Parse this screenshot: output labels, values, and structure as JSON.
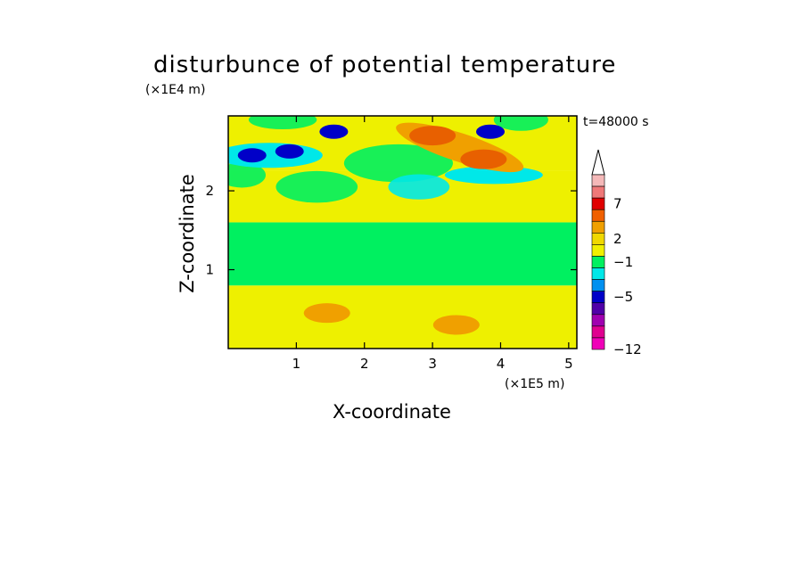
{
  "chart_data": {
    "type": "heatmap",
    "title": "disturbunce of potential temperature",
    "xlabel": "X-coordinate",
    "ylabel": "Z-coordinate",
    "x_unit": "(×1E5 m)",
    "y_unit": "(×1E4 m)",
    "time_label": "t=48000 s",
    "xlim": [
      0,
      5.12
    ],
    "ylim": [
      0,
      2.95
    ],
    "x_ticks": [
      1,
      2,
      3,
      4,
      5
    ],
    "x_tick_labels": [
      "1",
      "2",
      "3",
      "4",
      "5"
    ],
    "y_ticks": [
      1,
      2
    ],
    "y_tick_labels": [
      "1",
      "2"
    ],
    "colorbar": {
      "label_values": [
        7,
        2,
        -1,
        -5,
        -12
      ],
      "labels": [
        "7",
        "2",
        "−1",
        "−5",
        "−12"
      ],
      "colors_top_to_bottom": [
        "#f4b8b8",
        "#ef7878",
        "#e00000",
        "#f06000",
        "#f0a000",
        "#f0d800",
        "#f0f000",
        "#00f060",
        "#00e8e8",
        "#0090f0",
        "#0000c8",
        "#5000a8",
        "#a000b0",
        "#e00090",
        "#f000b8"
      ]
    },
    "field_bands": [
      {
        "z_range": [
          0,
          0.8
        ],
        "value": 0.5,
        "color": "#eef000"
      },
      {
        "z_range": [
          0.8,
          1.6
        ],
        "value": 0,
        "color": "#00f060"
      },
      {
        "z_range": [
          1.6,
          2.25
        ],
        "value": 0.5,
        "color": "#eef000"
      },
      {
        "z_range": [
          2.25,
          2.95
        ],
        "value": 0.5,
        "color": "#eef000"
      }
    ],
    "features": [
      {
        "kind": "cold",
        "x": 0.35,
        "z": 2.45,
        "value": -5,
        "color": "#0000c8"
      },
      {
        "kind": "cold",
        "x": 0.9,
        "z": 2.5,
        "value": -5,
        "color": "#0000c8"
      },
      {
        "kind": "cold",
        "x": 1.55,
        "z": 2.75,
        "value": -5,
        "color": "#0000c8"
      },
      {
        "kind": "cold",
        "x": 3.85,
        "z": 2.75,
        "value": -5,
        "color": "#0000c8"
      },
      {
        "kind": "warm",
        "x": 3.0,
        "z": 2.7,
        "value": 5,
        "color": "#e86000"
      },
      {
        "kind": "warm",
        "x": 3.75,
        "z": 2.4,
        "value": 5,
        "color": "#e86000"
      },
      {
        "kind": "warm",
        "x": 1.45,
        "z": 0.45,
        "value": 3,
        "color": "#f0a000"
      },
      {
        "kind": "warm",
        "x": 3.35,
        "z": 0.3,
        "value": 3,
        "color": "#f0a000"
      }
    ]
  },
  "colors": {
    "background": "#ffffff",
    "axis": "#000000"
  }
}
